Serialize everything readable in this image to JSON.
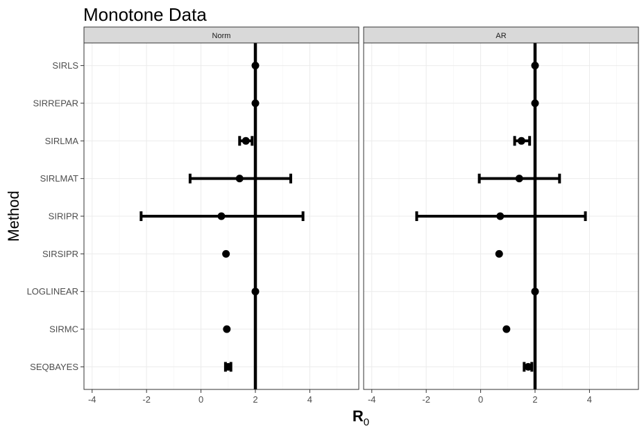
{
  "chart_data": {
    "type": "errorbar",
    "title": "Monotone Data",
    "xlabel": {
      "main": "R",
      "subscript": "0"
    },
    "ylabel": "Method",
    "xlim": [
      -4.3,
      5.8
    ],
    "xticks": [
      -4,
      -2,
      0,
      2,
      4
    ],
    "xtick_labels": [
      "-4",
      "-2",
      "0",
      "2",
      "4"
    ],
    "reference_line_x": 2,
    "categories": [
      "SIRLS",
      "SIRREPAR",
      "SIRLMA",
      "SIRLMAT",
      "SIRIPR",
      "SIRSIPR",
      "LOGLINEAR",
      "SIRMC",
      "SEQBAYES"
    ],
    "grid": true,
    "panels": [
      {
        "name": "Norm",
        "points": [
          {
            "method": "SIRLS",
            "estimate": 2.0,
            "lower": 2.0,
            "upper": 2.0
          },
          {
            "method": "SIRREPAR",
            "estimate": 2.0,
            "lower": 2.0,
            "upper": 2.0
          },
          {
            "method": "SIRLMA",
            "estimate": 1.65,
            "lower": 1.42,
            "upper": 1.88
          },
          {
            "method": "SIRLMAT",
            "estimate": 1.42,
            "lower": -0.4,
            "upper": 3.3
          },
          {
            "method": "SIRIPR",
            "estimate": 0.75,
            "lower": -2.2,
            "upper": 3.75
          },
          {
            "method": "SIRSIPR",
            "estimate": 0.92,
            "lower": 0.92,
            "upper": 0.92
          },
          {
            "method": "LOGLINEAR",
            "estimate": 2.0,
            "lower": 2.0,
            "upper": 2.0
          },
          {
            "method": "SIRMC",
            "estimate": 0.95,
            "lower": 0.95,
            "upper": 0.95
          },
          {
            "method": "SEQBAYES",
            "estimate": 1.0,
            "lower": 0.9,
            "upper": 1.1
          }
        ]
      },
      {
        "name": "AR",
        "points": [
          {
            "method": "SIRLS",
            "estimate": 2.0,
            "lower": 2.0,
            "upper": 2.0
          },
          {
            "method": "SIRREPAR",
            "estimate": 2.0,
            "lower": 2.0,
            "upper": 2.0
          },
          {
            "method": "SIRLMA",
            "estimate": 1.5,
            "lower": 1.25,
            "upper": 1.8
          },
          {
            "method": "SIRLMAT",
            "estimate": 1.42,
            "lower": -0.05,
            "upper": 2.9
          },
          {
            "method": "SIRIPR",
            "estimate": 0.72,
            "lower": -2.35,
            "upper": 3.85
          },
          {
            "method": "SIRSIPR",
            "estimate": 0.68,
            "lower": 0.68,
            "upper": 0.68
          },
          {
            "method": "LOGLINEAR",
            "estimate": 2.0,
            "lower": 2.0,
            "upper": 2.0
          },
          {
            "method": "SIRMC",
            "estimate": 0.95,
            "lower": 0.95,
            "upper": 0.95
          },
          {
            "method": "SEQBAYES",
            "estimate": 1.75,
            "lower": 1.6,
            "upper": 1.88
          }
        ]
      }
    ]
  }
}
